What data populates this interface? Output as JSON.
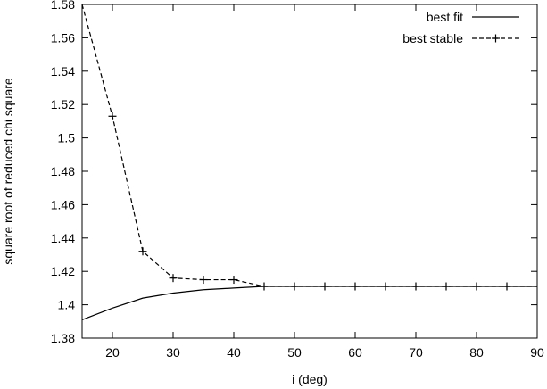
{
  "chart_data": {
    "type": "line",
    "title": "",
    "xlabel": "i (deg)",
    "ylabel": "square root of reduced chi square",
    "xlim": [
      15,
      90
    ],
    "ylim": [
      1.38,
      1.58
    ],
    "grid": false,
    "legend_position": "top-right",
    "xticks": [
      20,
      30,
      40,
      50,
      60,
      70,
      80,
      90
    ],
    "yticks": [
      1.38,
      1.4,
      1.42,
      1.44,
      1.46,
      1.48,
      1.5,
      1.52,
      1.54,
      1.56,
      1.58
    ],
    "series": [
      {
        "name": "best fit",
        "style": "solid",
        "markers": false,
        "x": [
          15,
          20,
          25,
          30,
          35,
          40,
          45,
          50,
          55,
          60,
          65,
          70,
          75,
          80,
          85,
          90
        ],
        "y": [
          1.391,
          1.398,
          1.404,
          1.407,
          1.409,
          1.41,
          1.411,
          1.411,
          1.411,
          1.411,
          1.411,
          1.411,
          1.411,
          1.411,
          1.411,
          1.411
        ]
      },
      {
        "name": "best stable",
        "style": "dashed",
        "markers": true,
        "x": [
          15,
          20,
          25,
          30,
          35,
          40,
          45,
          50,
          55,
          60,
          65,
          70,
          75,
          80,
          85,
          90
        ],
        "y": [
          1.58,
          1.513,
          1.432,
          1.416,
          1.415,
          1.415,
          1.411,
          1.411,
          1.411,
          1.411,
          1.411,
          1.411,
          1.411,
          1.411,
          1.411,
          1.411
        ]
      }
    ]
  }
}
